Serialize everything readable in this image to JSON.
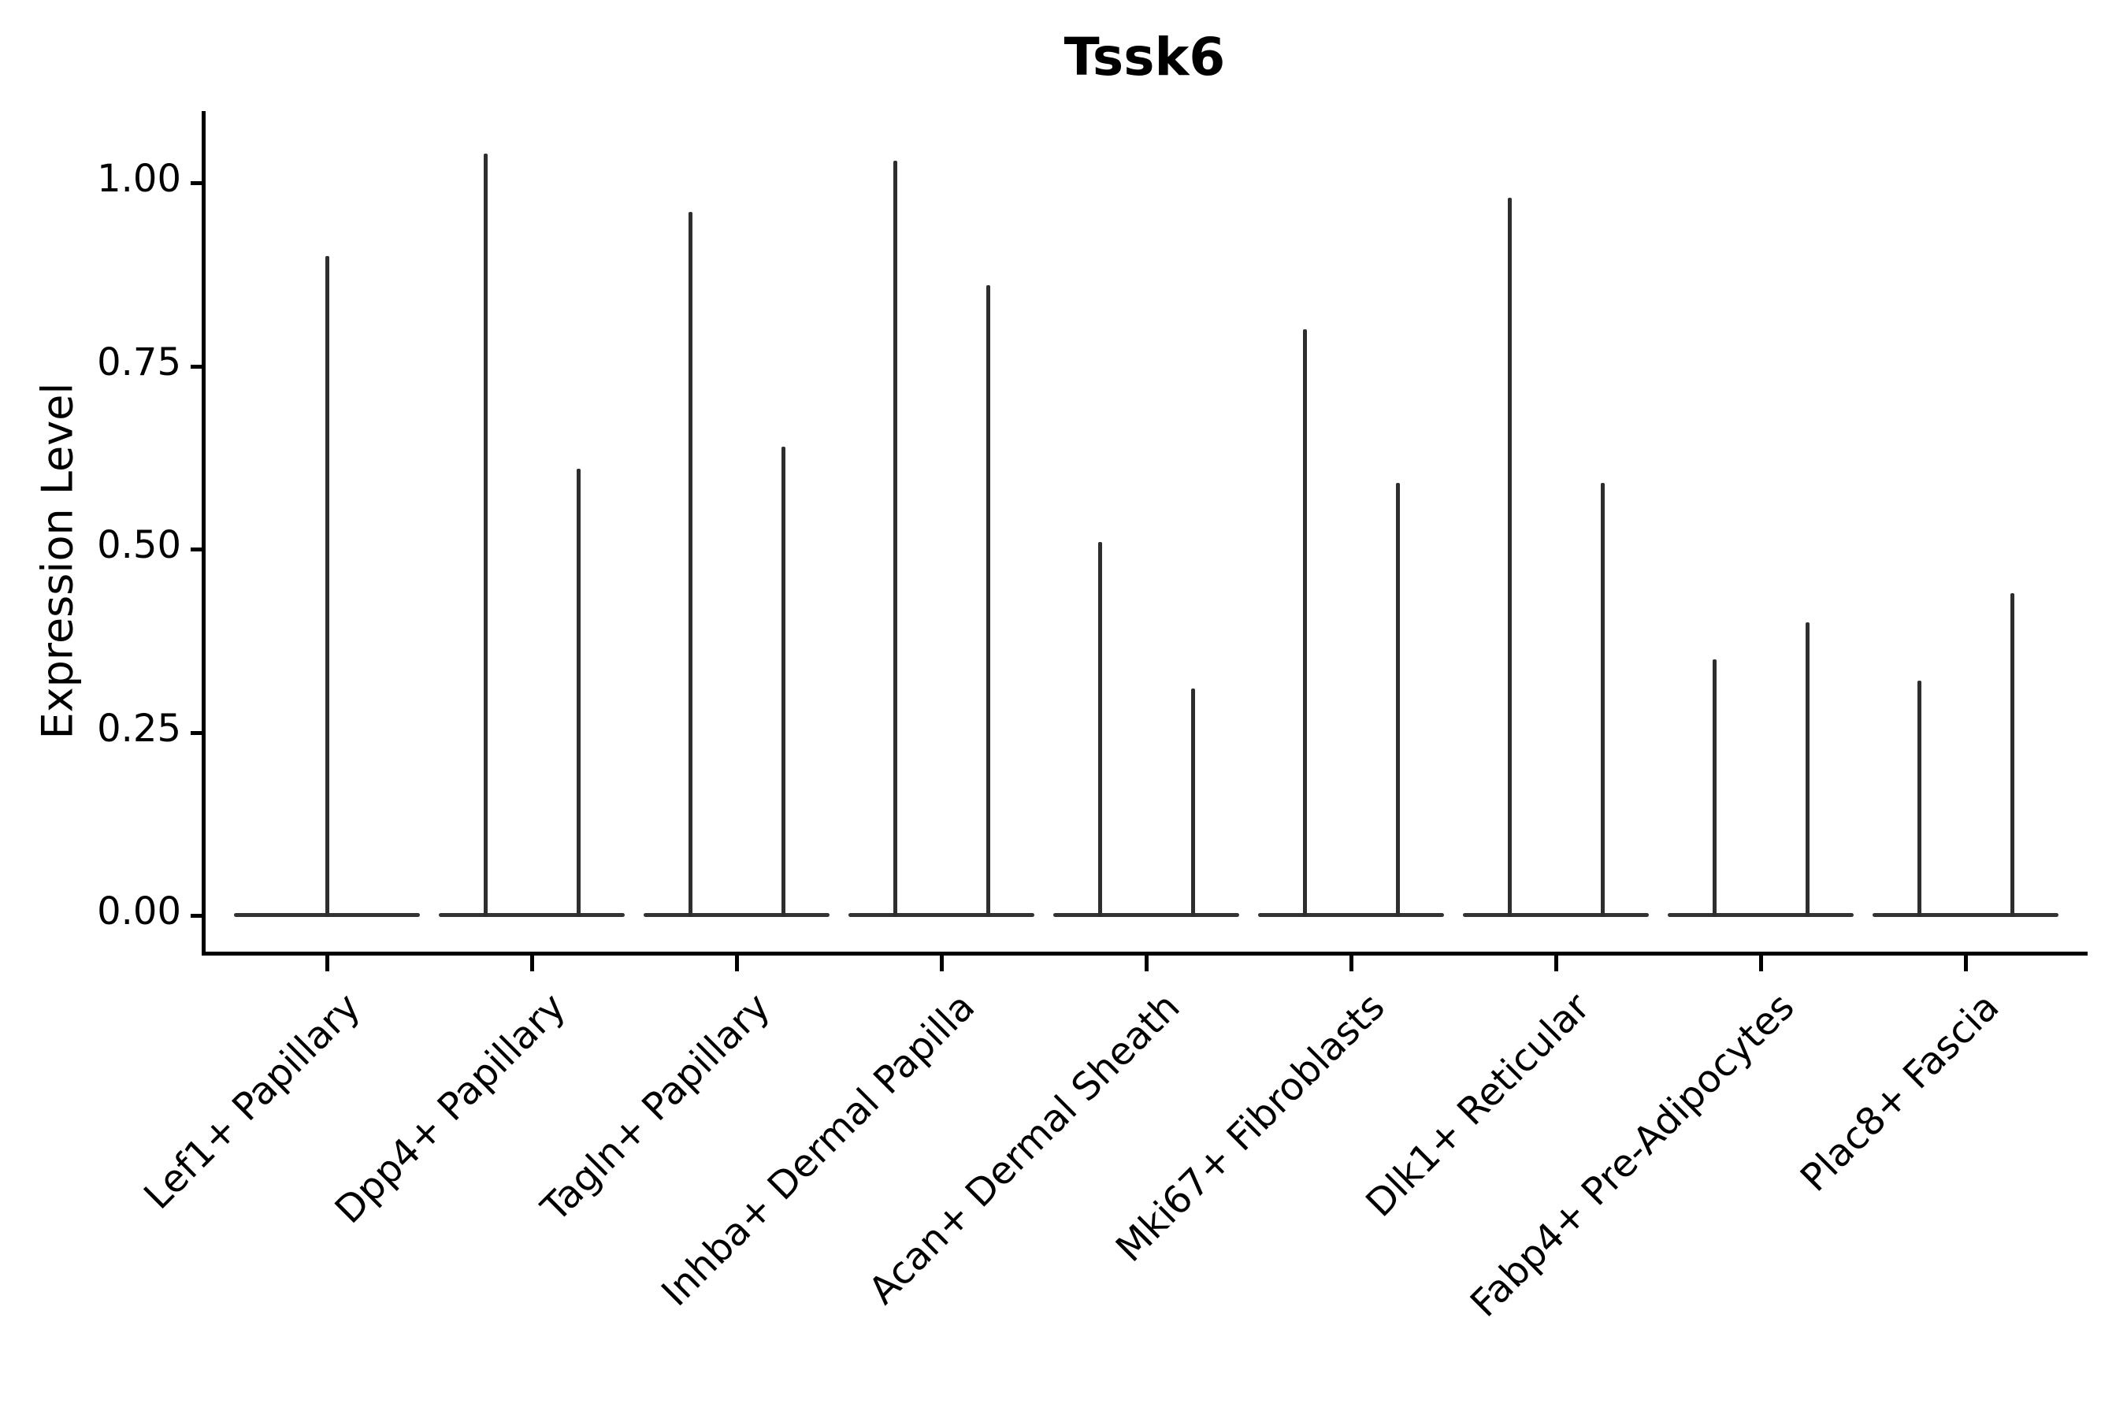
{
  "title": "Tssk6",
  "colors": {
    "background": "#ffffff",
    "axis": "#000000",
    "text": "#000000",
    "violin": "#2e2e2e",
    "violin_base": "#333333"
  },
  "chart_data": {
    "type": "violin",
    "title": "Tssk6",
    "xlabel": "",
    "ylabel": "Expression Level",
    "ylim": [
      0,
      1.09
    ],
    "grid": false,
    "legend": "none",
    "y_ticks": [
      {
        "value": 1.0,
        "label": "1.00"
      },
      {
        "value": 0.75,
        "label": "0.75"
      },
      {
        "value": 0.5,
        "label": "0.50"
      },
      {
        "value": 0.25,
        "label": "0.25"
      },
      {
        "value": 0.0,
        "label": "0.00"
      }
    ],
    "categories": [
      "Lef1+ Papillary",
      "Dpp4+ Papillary",
      "Tagln+ Papillary",
      "Inhba+ Dermal Papilla",
      "Acan+ Dermal Sheath",
      "Mki67+ Fibroblasts",
      "Dlk1+ Reticular",
      "Fabp4+ Pre-Adipocytes",
      "Plac8+ Fascia"
    ],
    "series": [
      {
        "category": "Lef1+ Papillary",
        "violin_max_values": [
          0.9
        ]
      },
      {
        "category": "Dpp4+ Papillary",
        "violin_max_values": [
          1.04,
          0.61
        ]
      },
      {
        "category": "Tagln+ Papillary",
        "violin_max_values": [
          0.96,
          0.64
        ]
      },
      {
        "category": "Inhba+ Dermal Papilla",
        "violin_max_values": [
          1.03,
          0.86
        ]
      },
      {
        "category": "Acan+ Dermal Sheath",
        "violin_max_values": [
          0.51,
          0.31
        ]
      },
      {
        "category": "Mki67+ Fibroblasts",
        "violin_max_values": [
          0.8,
          0.59
        ]
      },
      {
        "category": "Dlk1+ Reticular",
        "violin_max_values": [
          0.98,
          0.59
        ]
      },
      {
        "category": "Fabp4+ Pre-Adipocytes",
        "violin_max_values": [
          0.35,
          0.4
        ]
      },
      {
        "category": "Plac8+ Fascia",
        "violin_max_values": [
          0.32,
          0.44
        ]
      }
    ],
    "description": "Violin plot of expression mostly at 0: each violin renders as a flat baseline at 0 with a thin vertical spike up to its maximum expression value."
  }
}
